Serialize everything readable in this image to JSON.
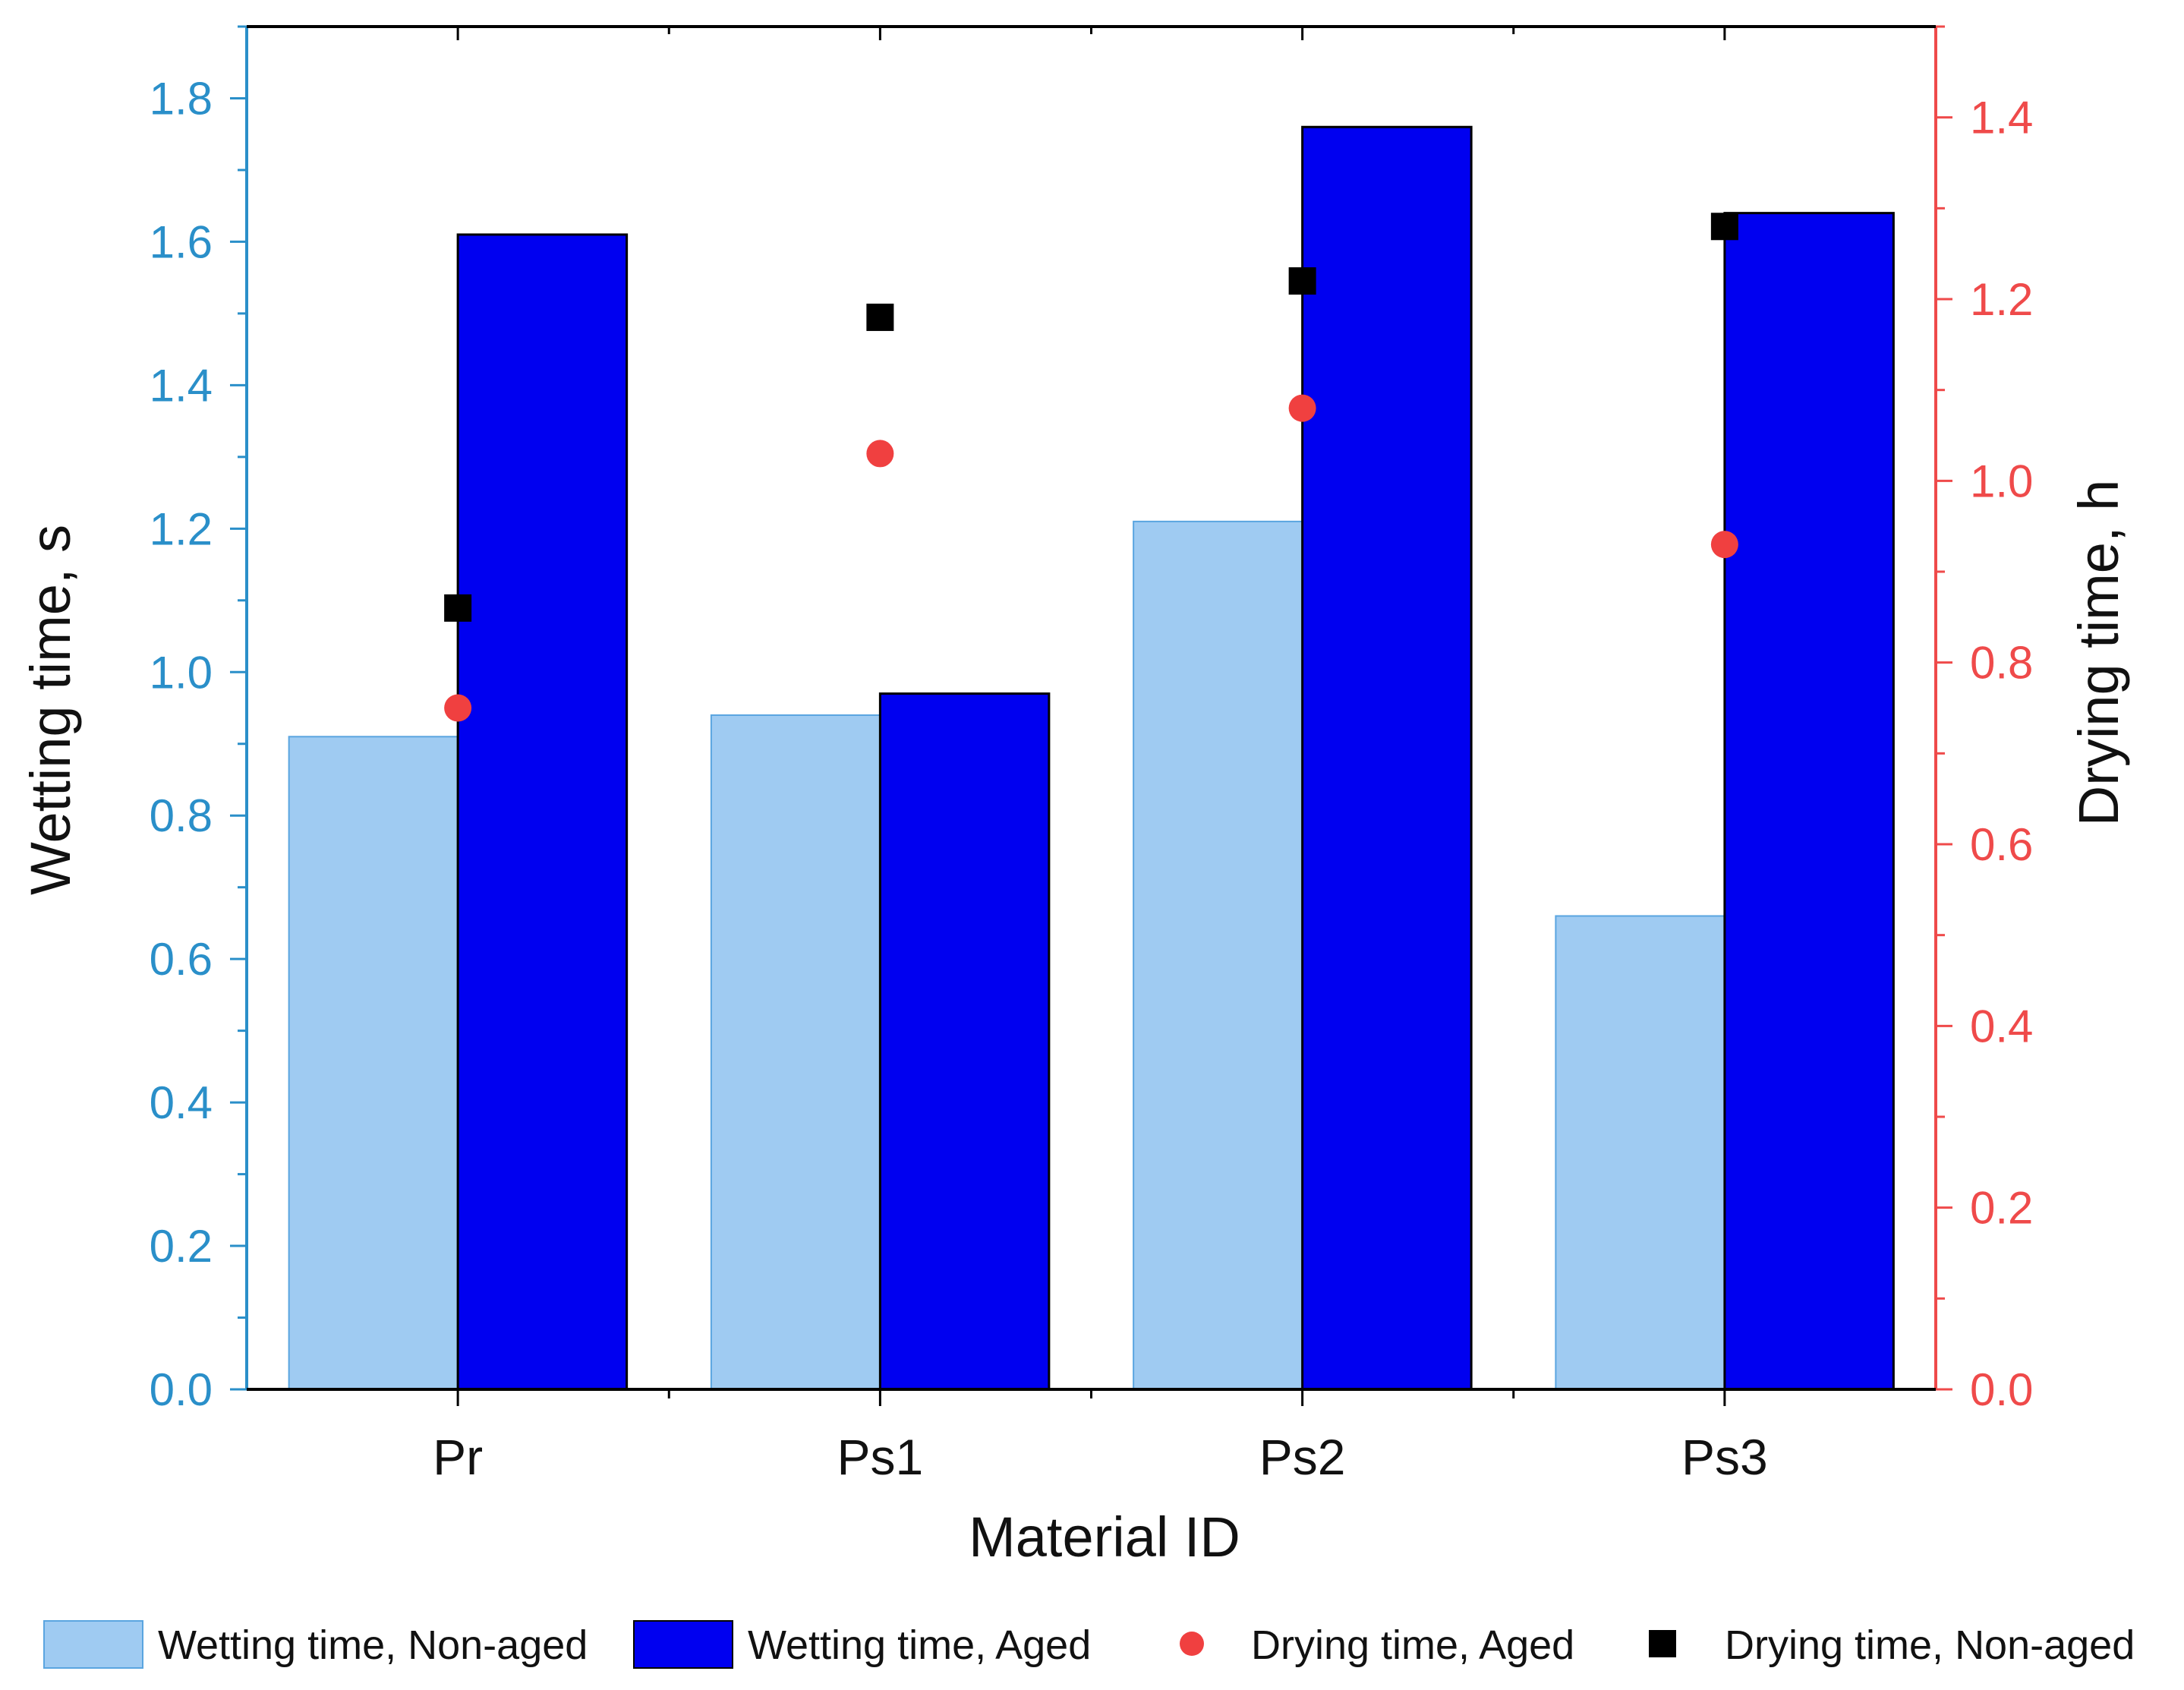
{
  "chart_data": {
    "type": "bar",
    "xlabel": "Material ID",
    "ylabel_left": "Wetting time, s",
    "ylabel_right": "Drying time, h",
    "categories": [
      "Pr",
      "Ps1",
      "Ps2",
      "Ps3"
    ],
    "ylim_left": [
      0,
      1.9
    ],
    "ylim_right": [
      0,
      1.5
    ],
    "yticks_left": [
      "0.0",
      "0.2",
      "0.4",
      "0.6",
      "0.8",
      "1.0",
      "1.2",
      "1.4",
      "1.6",
      "1.8"
    ],
    "yticks_right": [
      "0.0",
      "0.2",
      "0.4",
      "0.6",
      "0.8",
      "1.0",
      "1.2",
      "1.4"
    ],
    "bar_series": [
      {
        "name": "Wetting time, Non-aged",
        "axis": "left",
        "color": "#9fcbf2",
        "edge": "#5aa5e0",
        "values": [
          0.91,
          0.94,
          1.21,
          0.66
        ]
      },
      {
        "name": "Wetting time,  Aged",
        "axis": "left",
        "color": "#0000f0",
        "edge": "#000000",
        "values": [
          1.61,
          0.97,
          1.76,
          1.64
        ]
      }
    ],
    "point_series": [
      {
        "name": "Drying time, Aged",
        "axis": "right",
        "marker": "circle",
        "color": "#f04040",
        "values": [
          0.75,
          1.03,
          1.08,
          0.93
        ]
      },
      {
        "name": "Drying time, Non-aged",
        "axis": "right",
        "marker": "square",
        "color": "#000000",
        "values": [
          0.86,
          1.18,
          1.22,
          1.28
        ]
      }
    ],
    "axis_colors": {
      "left": "#2a8fc9",
      "right": "#ef4a4a",
      "frame": "#000000"
    },
    "legend_position": "bottom"
  }
}
